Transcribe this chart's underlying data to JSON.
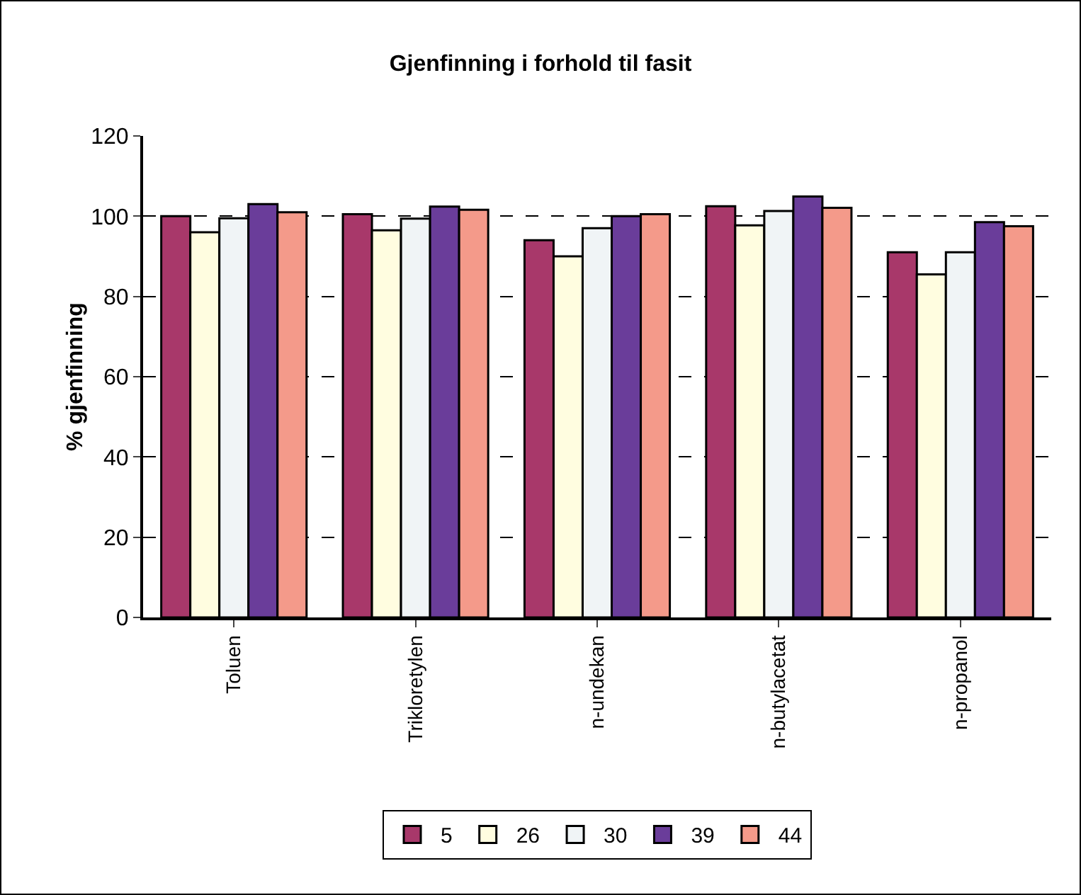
{
  "chart_data": {
    "type": "bar",
    "title": "Gjenfinning i forhold til fasit",
    "ylabel": "% gjenfinning",
    "categories": [
      "Toluen",
      "Trikloretylen",
      "n-undekan",
      "n-butylacetat",
      "n-propanol"
    ],
    "series": [
      {
        "name": "5",
        "color": "#a8386a",
        "values": [
          100,
          100.5,
          94,
          102.5,
          91
        ]
      },
      {
        "name": "26",
        "color": "#fffde0",
        "values": [
          96,
          96.5,
          90,
          97.7,
          85.5
        ]
      },
      {
        "name": "30",
        "color": "#f0f4f6",
        "values": [
          99.5,
          99.4,
          97,
          101.3,
          91
        ]
      },
      {
        "name": "39",
        "color": "#6a3d9a",
        "values": [
          103,
          102.4,
          100,
          104.9,
          98.5
        ]
      },
      {
        "name": "44",
        "color": "#f49a8a",
        "values": [
          101,
          101.6,
          100.5,
          102.1,
          97.5
        ]
      }
    ],
    "ylim": [
      0,
      120
    ],
    "yticks": [
      0,
      20,
      40,
      60,
      80,
      100,
      120
    ],
    "grid": "y",
    "legend": "bottom"
  }
}
